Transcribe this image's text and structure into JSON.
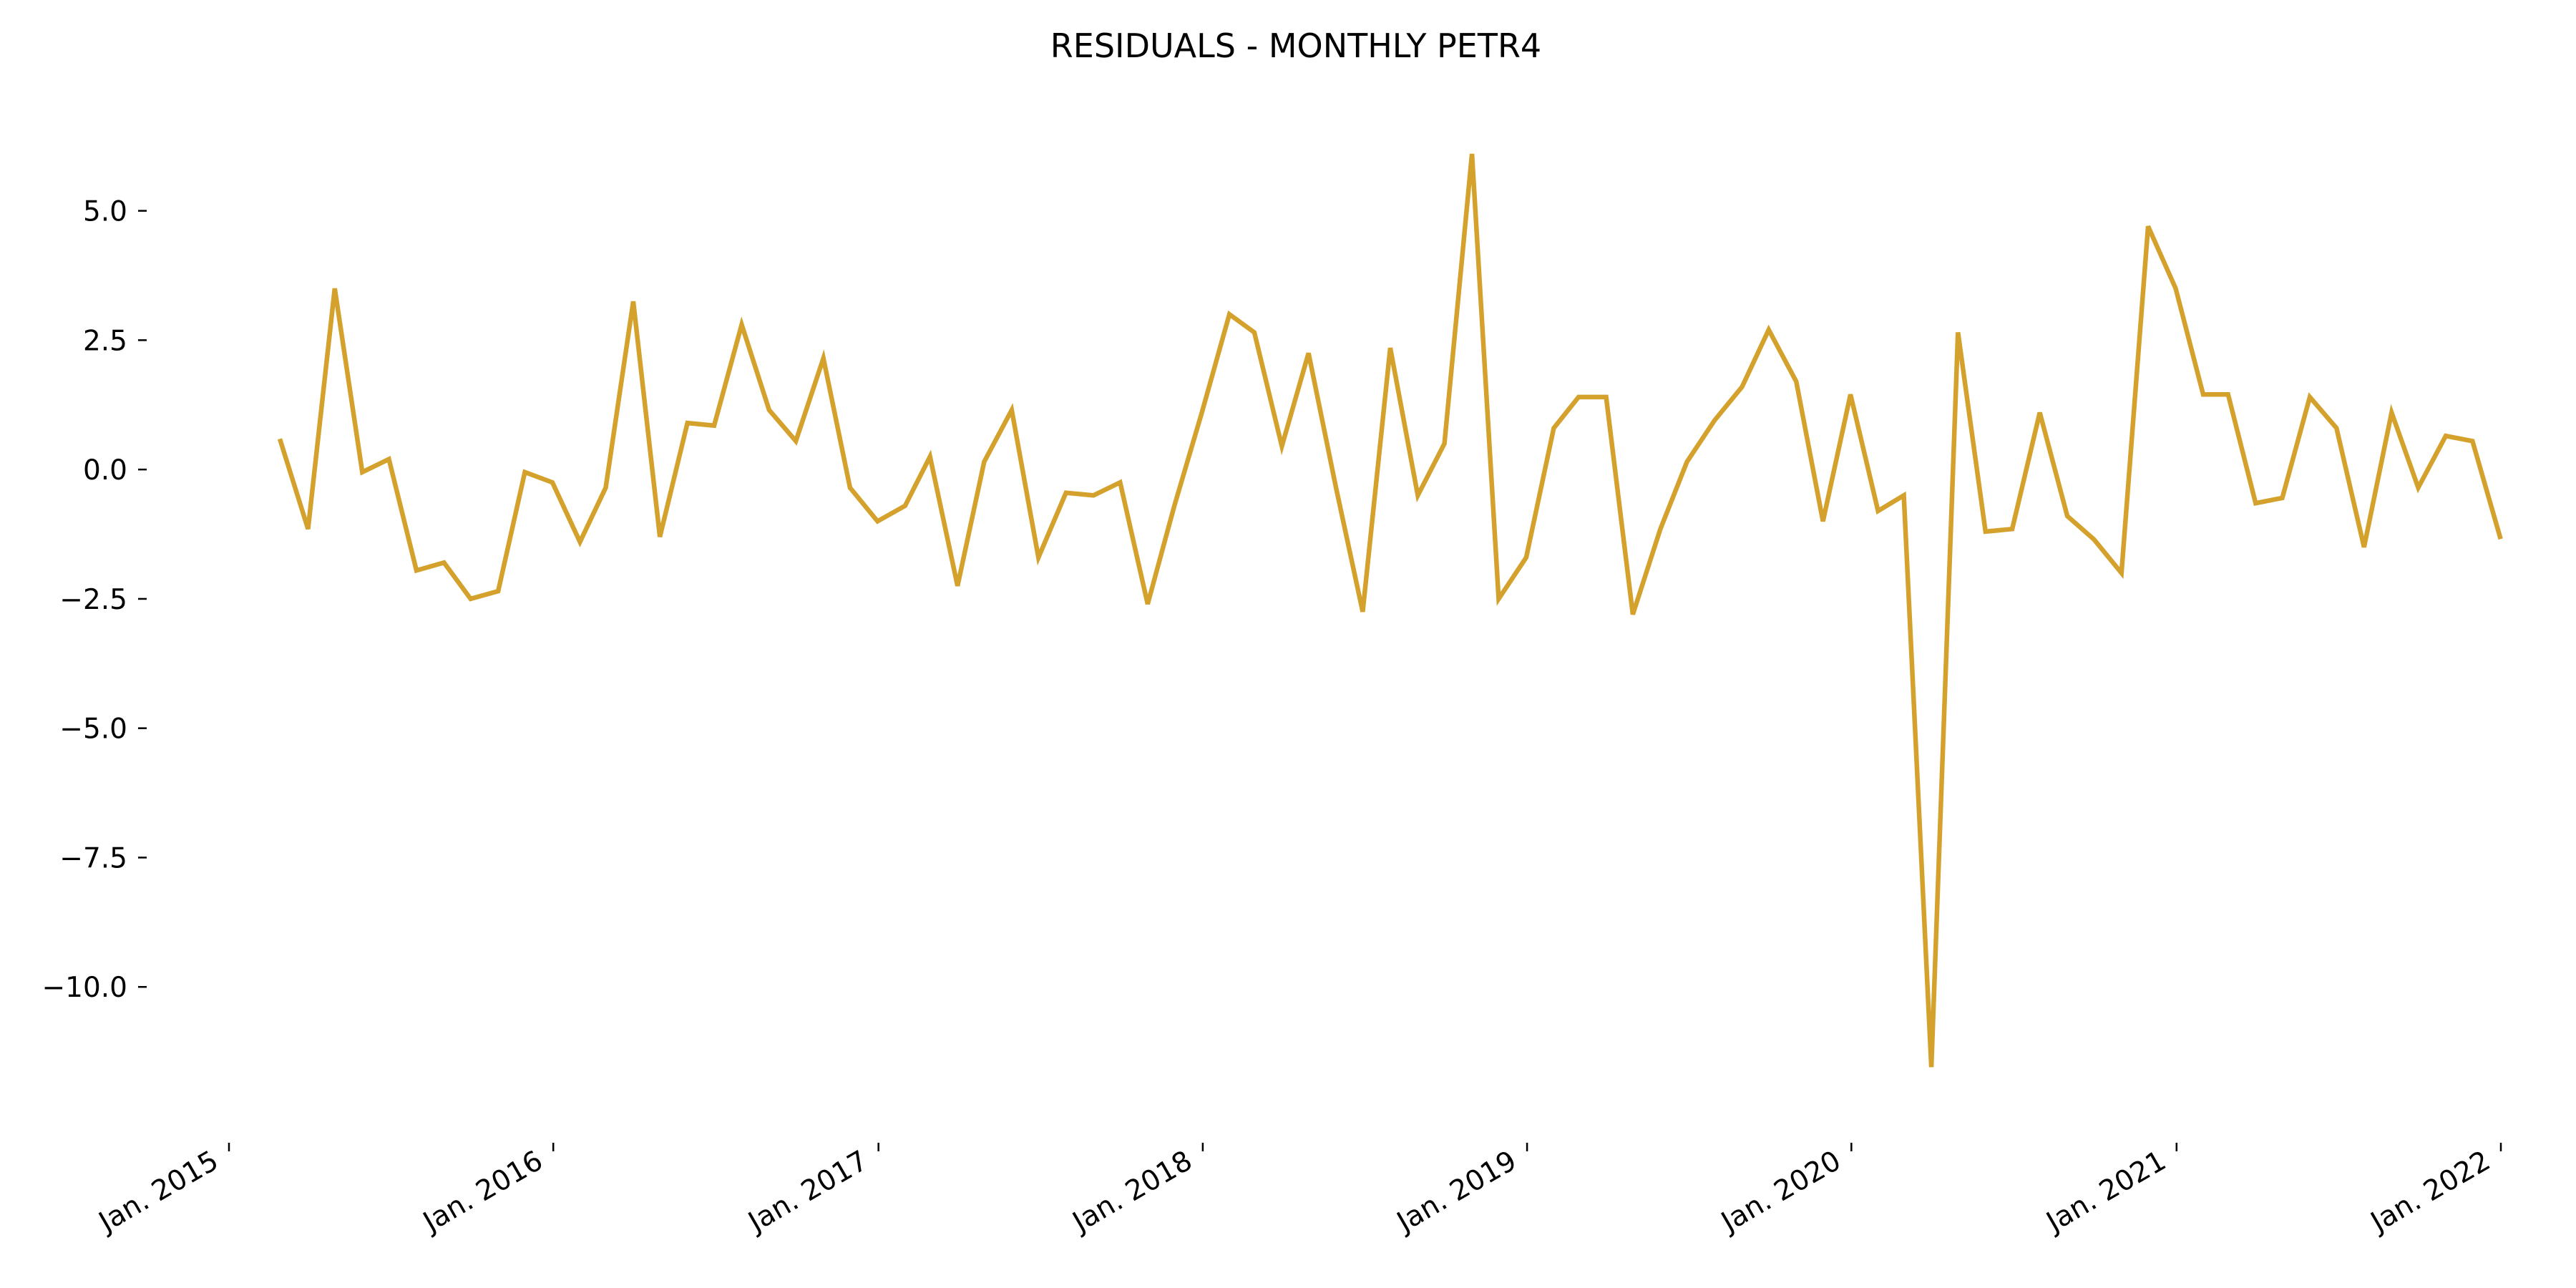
{
  "chart_data": {
    "type": "line",
    "title": "RESIDUALS - MONTHLY PETR4",
    "xlabel": "",
    "ylabel": "",
    "x_range": [
      "2015-01-01",
      "2022-01-01"
    ],
    "ylim": [
      -12.5,
      7.0
    ],
    "grid": false,
    "legend": "none",
    "line_color": "#D4A22C",
    "x_ticks": [
      {
        "date": "2015-01-01",
        "label": "Jan. 2015"
      },
      {
        "date": "2016-01-01",
        "label": "Jan. 2016"
      },
      {
        "date": "2017-01-01",
        "label": "Jan. 2017"
      },
      {
        "date": "2018-01-01",
        "label": "Jan. 2018"
      },
      {
        "date": "2019-01-01",
        "label": "Jan. 2019"
      },
      {
        "date": "2020-01-01",
        "label": "Jan. 2020"
      },
      {
        "date": "2021-01-01",
        "label": "Jan. 2021"
      },
      {
        "date": "2022-01-01",
        "label": "Jan. 2022"
      }
    ],
    "y_ticks": [
      {
        "value": 5.0,
        "label": "5.0"
      },
      {
        "value": 2.5,
        "label": "2.5"
      },
      {
        "value": 0.0,
        "label": "0.0"
      },
      {
        "value": -2.5,
        "label": "−2.5"
      },
      {
        "value": -5.0,
        "label": "−5.0"
      },
      {
        "value": -7.5,
        "label": "−7.5"
      },
      {
        "value": -10.0,
        "label": "−10.0"
      }
    ],
    "series": [
      {
        "x": [
          "2015-02-28",
          "2015-03-31",
          "2015-04-30",
          "2015-05-31",
          "2015-06-30",
          "2015-07-31",
          "2015-08-31",
          "2015-09-30",
          "2015-10-31",
          "2015-11-30",
          "2015-12-31",
          "2016-01-31",
          "2016-02-29",
          "2016-03-31",
          "2016-04-30",
          "2016-05-31",
          "2016-06-30",
          "2016-07-31",
          "2016-08-31",
          "2016-09-30",
          "2016-10-31",
          "2016-11-30",
          "2016-12-31",
          "2017-01-31",
          "2017-02-28",
          "2017-03-31",
          "2017-04-30",
          "2017-05-31",
          "2017-06-30",
          "2017-07-31",
          "2017-08-31",
          "2017-09-30",
          "2017-10-31",
          "2017-11-30",
          "2017-12-31",
          "2018-01-31",
          "2018-02-28",
          "2018-03-31",
          "2018-04-30",
          "2018-05-31",
          "2018-06-30",
          "2018-07-31",
          "2018-08-31",
          "2018-09-30",
          "2018-10-31",
          "2018-11-30",
          "2018-12-31",
          "2019-01-31",
          "2019-02-28",
          "2019-03-31",
          "2019-04-30",
          "2019-05-31",
          "2019-06-30",
          "2019-07-31",
          "2019-08-31",
          "2019-09-30",
          "2019-10-31",
          "2019-11-30",
          "2019-12-31",
          "2020-01-31",
          "2020-02-29",
          "2020-03-31",
          "2020-04-30",
          "2020-05-31",
          "2020-06-30",
          "2020-07-31",
          "2020-08-31",
          "2020-09-30",
          "2020-10-31",
          "2020-11-30",
          "2020-12-31",
          "2021-01-31",
          "2021-02-28",
          "2021-03-31",
          "2021-04-30",
          "2021-05-31",
          "2021-06-30",
          "2021-07-31",
          "2021-08-31",
          "2021-09-30",
          "2021-10-31",
          "2021-11-30",
          "2021-12-31"
        ],
        "y": [
          0.55,
          -1.15,
          3.5,
          -0.05,
          0.2,
          -1.95,
          -1.8,
          -2.5,
          -2.35,
          -0.05,
          -0.25,
          -1.4,
          -0.35,
          3.25,
          -1.3,
          0.9,
          0.85,
          2.8,
          1.15,
          0.55,
          2.15,
          -0.35,
          -1.0,
          -0.7,
          0.25,
          -2.25,
          0.15,
          1.15,
          -1.7,
          -0.45,
          -0.5,
          -0.25,
          -2.6,
          -0.7,
          1.1,
          3.0,
          2.65,
          0.45,
          2.25,
          -0.35,
          -2.75,
          2.35,
          -0.5,
          0.5,
          6.1,
          -2.5,
          -1.7,
          0.8,
          1.4,
          1.4,
          -2.8,
          -1.15,
          0.15,
          0.95,
          1.6,
          2.7,
          1.7,
          -1.0,
          1.45,
          -0.8,
          -0.5,
          -11.55,
          2.65,
          -1.2,
          -1.15,
          1.1,
          -0.9,
          -1.35,
          -2.0,
          4.7,
          3.5,
          1.45,
          1.45,
          -0.65,
          -0.55,
          1.4,
          0.8,
          -1.5,
          1.1,
          -0.35,
          0.65,
          0.55,
          -1.3
        ]
      }
    ]
  }
}
